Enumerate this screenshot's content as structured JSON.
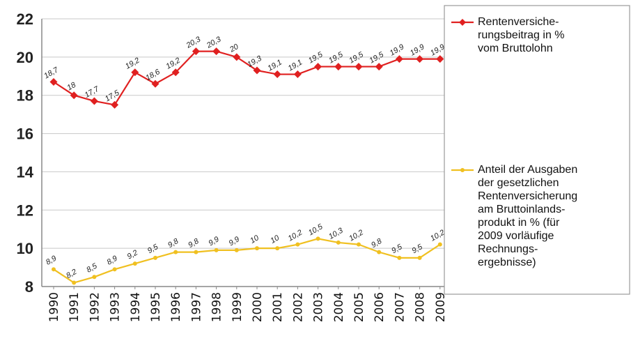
{
  "chart_data": {
    "type": "line",
    "title": "",
    "xlabel": "",
    "ylabel": "",
    "ylim": [
      8,
      22
    ],
    "yticks": [
      8,
      10,
      12,
      14,
      16,
      18,
      20,
      22
    ],
    "grid": true,
    "legend_placement": "right",
    "x": [
      "1990",
      "1991",
      "1992",
      "1993",
      "1994",
      "1995",
      "1996",
      "1997",
      "1998",
      "1999",
      "2000",
      "2001",
      "2002",
      "2003",
      "2004",
      "2005",
      "2006",
      "2007",
      "2008",
      "2009"
    ],
    "series": [
      {
        "name": "Rentenversiche-rungsbeitrag in % vom Bruttolohn",
        "legend_lines": [
          "Rentenversiche-",
          "rungsbeitrag in %",
          "vom Bruttolohn"
        ],
        "color": "#e02020",
        "marker": "diamond",
        "values": [
          18.7,
          18,
          17.7,
          17.5,
          19.2,
          18.6,
          19.2,
          20.3,
          20.3,
          20,
          19.3,
          19.1,
          19.1,
          19.5,
          19.5,
          19.5,
          19.5,
          19.9,
          19.9,
          19.9
        ],
        "labels": [
          "18,7",
          "18",
          "17,7",
          "17,5",
          "19,2",
          "18,6",
          "19,2",
          "20,3",
          "20,3",
          "20",
          "19,3",
          "19,1",
          "19,1",
          "19,5",
          "19,5",
          "19,5",
          "19,5",
          "19,9",
          "19,9",
          "19,9"
        ]
      },
      {
        "name": "Anteil der Ausgaben der gesetzlichen Rentenversicherung am Bruttoinlands-produkt in % (für 2009 vorläufige Rechnungs-ergebnisse)",
        "legend_lines": [
          "Anteil der Ausgaben",
          "der gesetzlichen",
          "Rentenversicherung",
          "am Bruttoinlands-",
          "produkt in % (für",
          "2009 vorläufige",
          "Rechnungs-",
          "ergebnisse)"
        ],
        "color": "#f0c020",
        "marker": "dot",
        "values": [
          8.9,
          8.2,
          8.5,
          8.9,
          9.2,
          9.5,
          9.8,
          9.8,
          9.9,
          9.9,
          10,
          10,
          10.2,
          10.5,
          10.3,
          10.2,
          9.8,
          9.5,
          9.5,
          10.2
        ],
        "labels": [
          "8,9",
          "8,2",
          "8,5",
          "8,9",
          "9,2",
          "9,5",
          "9,8",
          "9,8",
          "9,9",
          "9,9",
          "10",
          "10",
          "10,2",
          "10,5",
          "10,3",
          "10,2",
          "9,8",
          "9,5",
          "9,5",
          "10,2"
        ]
      }
    ]
  }
}
